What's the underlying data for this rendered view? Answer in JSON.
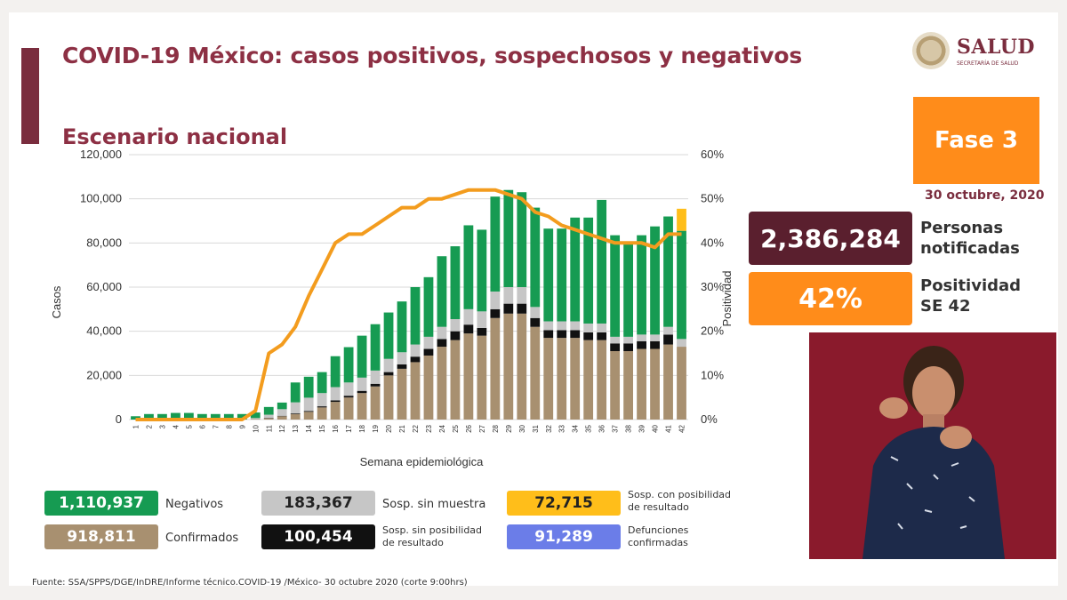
{
  "header": {
    "title": "COVID-19 México: casos positivos, sospechosos y negativos",
    "subtitle": "Escenario nacional",
    "logo_text": "SALUD",
    "logo_subtext": "SECRETARÍA DE SALUD"
  },
  "side_panel": {
    "fase": "Fase 3",
    "fecha": "30 octubre, 2020",
    "personas_value": "2,386,284",
    "personas_label_line1": "Personas",
    "personas_label_line2": "notificadas",
    "positividad_value": "42%",
    "positividad_label_line1": "Positividad",
    "positividad_label_line2": "SE 42"
  },
  "legend": {
    "negativos_value": "1,110,937",
    "negativos_label": "Negativos",
    "confirmados_value": "918,811",
    "confirmados_label": "Confirmados",
    "sin_muestra_value": "183,367",
    "sin_muestra_label": "Sosp. sin muestra",
    "sin_posibilidad_value": "100,454",
    "sin_posibilidad_label_line1": "Sosp. sin posibilidad",
    "sin_posibilidad_label_line2": "de resultado",
    "con_posibilidad_value": "72,715",
    "con_posibilidad_label_line1": "Sosp. con posibilidad",
    "con_posibilidad_label_line2": "de resultado",
    "defunciones_value": "91,289",
    "defunciones_label_line1": "Defunciones",
    "defunciones_label_line2": "confirmadas"
  },
  "footer": {
    "source": "Fuente: SSA/SPPS/DGE/InDRE/Informe técnico.COVID-19 /México- 30 octubre 2020 (corte 9:00hrs)"
  },
  "colors": {
    "confirmados": "#a89070",
    "sin_posibilidad": "#111111",
    "sin_muestra": "#c6c6c6",
    "negativos": "#169b52",
    "con_posibilidad": "#ffbe1a",
    "positividad_line": "#f39c1e",
    "defunciones": "#6b7de8",
    "grid": "#d9d9d9"
  },
  "chart_data": {
    "type": "bar",
    "stacked": true,
    "xlabel": "Semana epidemiológica",
    "ylabel": "Casos",
    "y2label": "Positividad",
    "ylim": [
      0,
      120000
    ],
    "y2lim": [
      0,
      60
    ],
    "y_ticks": [
      "0",
      "20,000",
      "40,000",
      "60,000",
      "80,000",
      "100,000",
      "120,000"
    ],
    "y2_ticks": [
      "0%",
      "10%",
      "20%",
      "30%",
      "40%",
      "50%",
      "60%"
    ],
    "grid": true,
    "categories": [
      "1",
      "2",
      "3",
      "4",
      "5",
      "6",
      "7",
      "8",
      "9",
      "10",
      "11",
      "12",
      "13",
      "14",
      "15",
      "16",
      "17",
      "18",
      "19",
      "20",
      "21",
      "22",
      "23",
      "24",
      "25",
      "26",
      "27",
      "28",
      "29",
      "30",
      "31",
      "32",
      "33",
      "34",
      "35",
      "36",
      "37",
      "38",
      "39",
      "40",
      "41",
      "42"
    ],
    "series": [
      {
        "name": "Confirmados",
        "values": [
          0,
          0,
          0,
          0,
          0,
          0,
          0,
          0,
          0,
          200,
          600,
          1500,
          2500,
          3500,
          5500,
          8000,
          10000,
          12000,
          15000,
          20000,
          23000,
          26000,
          29000,
          33000,
          36000,
          39000,
          38000,
          46000,
          48000,
          48000,
          42000,
          37000,
          37000,
          37000,
          36000,
          36000,
          31000,
          31000,
          32000,
          32000,
          34000,
          33000
        ]
      },
      {
        "name": "Sosp. sin posibilidad de resultado",
        "values": [
          0,
          0,
          0,
          0,
          0,
          0,
          0,
          0,
          0,
          0,
          100,
          200,
          300,
          400,
          500,
          700,
          800,
          1000,
          1200,
          1500,
          2000,
          2500,
          3000,
          3500,
          4000,
          4000,
          3500,
          4000,
          4500,
          4500,
          4000,
          3500,
          3500,
          3500,
          3500,
          3500,
          3500,
          3500,
          3500,
          3500,
          4500,
          0
        ]
      },
      {
        "name": "Sosp. sin muestra",
        "values": [
          0,
          0,
          0,
          0,
          0,
          0,
          0,
          0,
          0,
          500,
          1500,
          3000,
          5000,
          6000,
          6000,
          6000,
          6000,
          6000,
          6000,
          6000,
          5500,
          5500,
          5500,
          5500,
          5500,
          7000,
          7500,
          8000,
          7500,
          7500,
          5000,
          4000,
          4000,
          4000,
          4000,
          4000,
          3000,
          3000,
          3000,
          3000,
          3500,
          3500
        ]
      },
      {
        "name": "Negativos",
        "values": [
          1500,
          2500,
          2500,
          3000,
          3000,
          2500,
          2500,
          2500,
          2500,
          2500,
          3500,
          3000,
          9000,
          9500,
          9500,
          14000,
          16000,
          19000,
          21000,
          21000,
          23000,
          26000,
          27000,
          32000,
          33000,
          38000,
          37000,
          43000,
          44000,
          43000,
          45000,
          42000,
          42000,
          47000,
          48000,
          56000,
          46000,
          42000,
          45000,
          49000,
          50000,
          49000
        ]
      },
      {
        "name": "Sosp. con posibilidad de resultado",
        "values": [
          0,
          0,
          0,
          0,
          0,
          0,
          0,
          0,
          0,
          0,
          0,
          0,
          0,
          0,
          0,
          0,
          0,
          0,
          0,
          0,
          0,
          0,
          0,
          0,
          0,
          0,
          0,
          0,
          0,
          0,
          0,
          0,
          0,
          0,
          0,
          0,
          0,
          0,
          0,
          0,
          0,
          10000
        ]
      }
    ],
    "line": {
      "name": "Positividad",
      "axis": "right",
      "values": [
        0,
        0,
        0,
        0,
        0,
        0,
        0,
        0,
        0,
        2,
        15,
        17,
        21,
        28,
        34,
        40,
        42,
        42,
        44,
        46,
        48,
        48,
        50,
        50,
        51,
        52,
        52,
        52,
        51,
        50,
        47,
        46,
        44,
        43,
        42,
        41,
        40,
        40,
        40,
        39,
        42,
        42
      ]
    }
  }
}
